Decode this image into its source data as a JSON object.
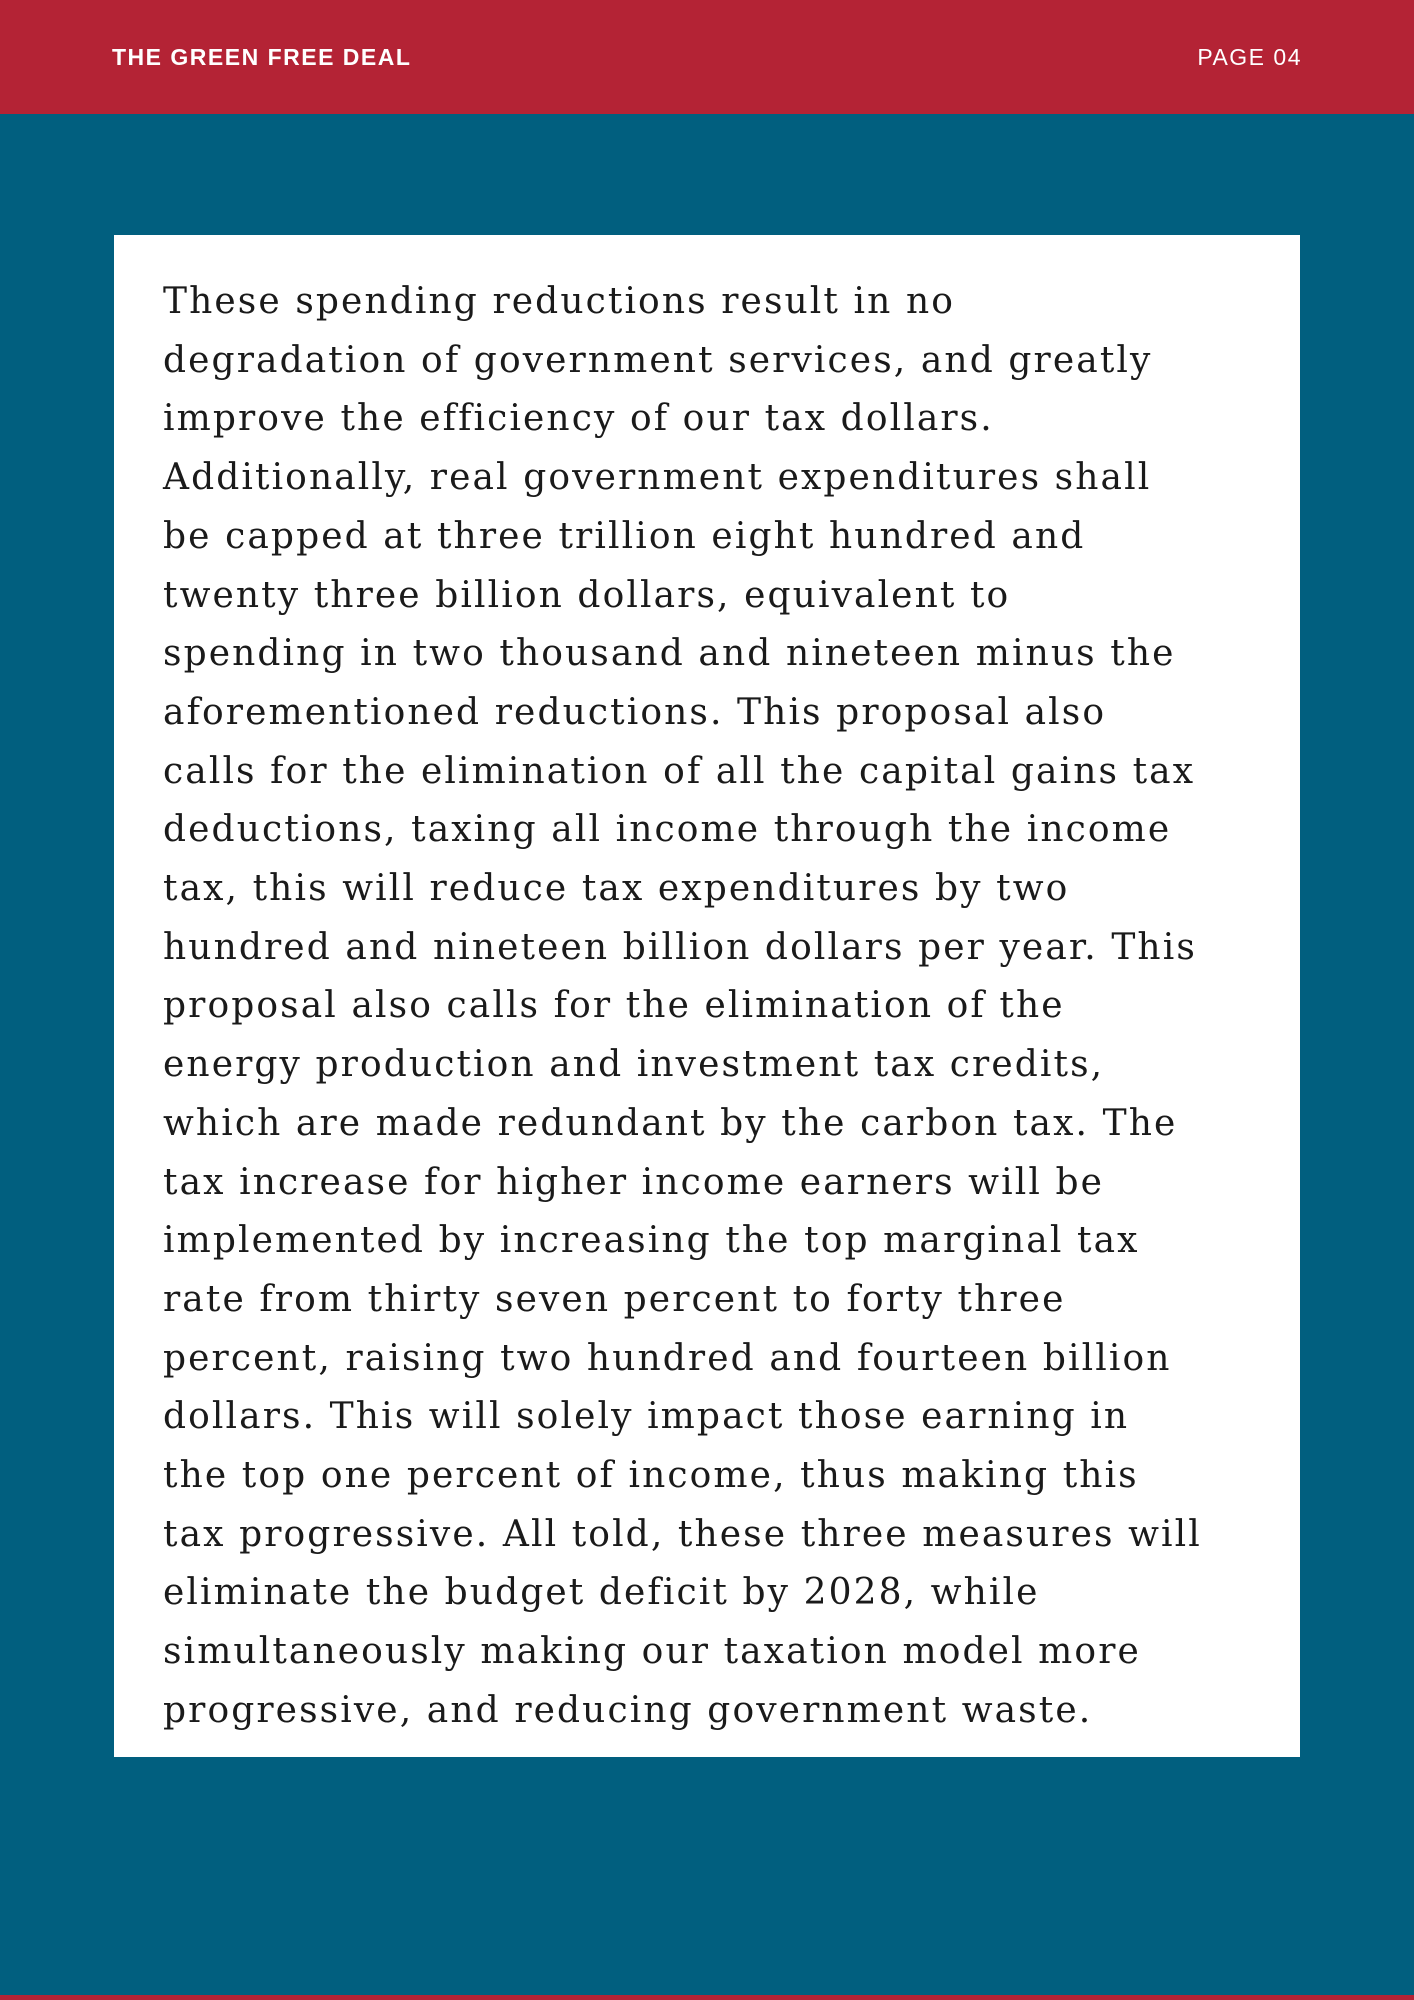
{
  "header": {
    "title": "THE GREEN FREE DEAL",
    "page_label": "PAGE 04"
  },
  "body": {
    "lines": [
      "These spending reductions result in no",
      "degradation of government services, and greatly",
      "improve the efficiency of our tax dollars.",
      "Additionally, real government expenditures shall",
      "be capped at three trillion eight hundred and",
      "twenty three billion dollars, equivalent to",
      "spending in two thousand and nineteen minus the",
      "aforementioned reductions. This proposal also",
      "calls for the elimination of all the capital gains tax",
      "deductions, taxing all income through the income",
      "tax, this will reduce tax expenditures by two",
      "hundred and nineteen billion dollars per year. This",
      "proposal also calls for the elimination of the",
      "energy production and investment tax credits,",
      "which are made redundant by the carbon tax. The",
      "tax increase for higher income earners will be",
      "implemented by increasing the top marginal tax",
      "rate from thirty seven percent to forty three",
      "percent, raising two hundred and fourteen billion",
      "dollars. This will solely impact those earning in",
      "the top one percent of income, thus making this",
      "tax progressive. All told, these three measures will",
      "eliminate the budget deficit by 2028, while",
      "simultaneously making our taxation model more",
      "progressive, and reducing government waste."
    ]
  },
  "colors": {
    "header_background": "#B42335",
    "page_background": "#015F7F",
    "card_background": "#FFFFFF",
    "text": "#1A1A1A"
  }
}
